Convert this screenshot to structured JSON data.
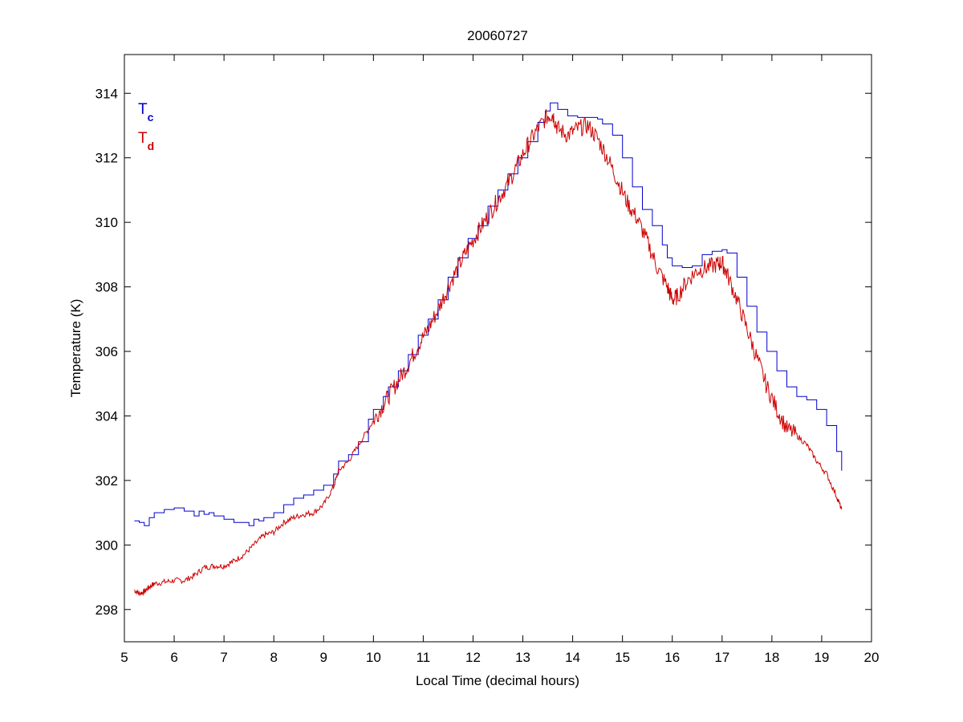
{
  "chart_data": {
    "type": "line",
    "title": "20060727",
    "xlabel": "Local Time (decimal hours)",
    "ylabel": "Temperature (K)",
    "xlim": [
      5,
      20
    ],
    "ylim": [
      297,
      315.2
    ],
    "xticks": [
      "5",
      "6",
      "7",
      "8",
      "9",
      "10",
      "11",
      "12",
      "13",
      "14",
      "15",
      "16",
      "17",
      "18",
      "19",
      "20"
    ],
    "yticks": [
      "298",
      "300",
      "302",
      "304",
      "306",
      "308",
      "310",
      "312",
      "314"
    ],
    "grid": false,
    "legend": {
      "placement": "top-left",
      "style": "inline-text"
    },
    "series": [
      {
        "name": "T",
        "subscript": "c",
        "color": "#0000cc",
        "style": "stepped",
        "x": [
          5.2,
          5.3,
          5.4,
          5.5,
          5.6,
          5.8,
          6.0,
          6.2,
          6.4,
          6.5,
          6.6,
          6.7,
          6.8,
          6.9,
          7.0,
          7.2,
          7.4,
          7.5,
          7.6,
          7.7,
          7.8,
          8.0,
          8.2,
          8.4,
          8.6,
          8.8,
          9.0,
          9.2,
          9.3,
          9.5,
          9.7,
          9.9,
          10.0,
          10.2,
          10.3,
          10.5,
          10.7,
          10.9,
          11.1,
          11.3,
          11.5,
          11.7,
          11.9,
          12.1,
          12.3,
          12.5,
          12.7,
          12.9,
          13.1,
          13.3,
          13.45,
          13.55,
          13.7,
          13.9,
          14.1,
          14.3,
          14.5,
          14.6,
          14.8,
          15.0,
          15.2,
          15.4,
          15.6,
          15.8,
          15.9,
          16.0,
          16.2,
          16.4,
          16.6,
          16.8,
          17.0,
          17.1,
          17.3,
          17.5,
          17.7,
          17.9,
          18.1,
          18.3,
          18.5,
          18.7,
          18.9,
          19.1,
          19.3,
          19.4
        ],
        "y": [
          300.75,
          300.7,
          300.6,
          300.85,
          301.0,
          301.1,
          301.15,
          301.05,
          300.9,
          301.05,
          300.95,
          301.0,
          300.9,
          300.9,
          300.8,
          300.7,
          300.7,
          300.6,
          300.8,
          300.75,
          300.85,
          301.0,
          301.25,
          301.45,
          301.55,
          301.7,
          301.85,
          302.2,
          302.6,
          302.8,
          303.2,
          303.9,
          304.2,
          304.6,
          304.9,
          305.4,
          305.9,
          306.5,
          307.0,
          307.6,
          308.3,
          308.9,
          309.5,
          309.9,
          310.5,
          311.0,
          311.5,
          312.0,
          312.5,
          313.1,
          313.45,
          313.7,
          313.5,
          313.3,
          313.25,
          313.25,
          313.2,
          313.05,
          312.7,
          312.0,
          311.1,
          310.4,
          309.9,
          309.3,
          308.9,
          308.65,
          308.6,
          308.65,
          309.0,
          309.1,
          309.15,
          309.05,
          308.3,
          307.4,
          306.6,
          306.0,
          305.4,
          304.9,
          304.6,
          304.5,
          304.2,
          303.7,
          302.9,
          302.3
        ]
      },
      {
        "name": "T",
        "subscript": "d",
        "color": "#cc0000",
        "style": "noisy",
        "x": [
          5.2,
          5.3,
          5.4,
          5.5,
          5.6,
          5.8,
          6.0,
          6.2,
          6.4,
          6.6,
          6.8,
          7.0,
          7.2,
          7.4,
          7.6,
          7.8,
          8.0,
          8.2,
          8.4,
          8.6,
          8.8,
          9.0,
          9.2,
          9.3,
          9.5,
          9.7,
          9.9,
          10.1,
          10.3,
          10.5,
          10.7,
          10.9,
          11.1,
          11.3,
          11.5,
          11.7,
          11.9,
          12.1,
          12.3,
          12.5,
          12.7,
          12.9,
          13.1,
          13.3,
          13.5,
          13.6,
          13.7,
          13.9,
          14.1,
          14.3,
          14.5,
          14.7,
          14.9,
          15.1,
          15.3,
          15.5,
          15.7,
          15.9,
          16.0,
          16.1,
          16.3,
          16.5,
          16.7,
          16.9,
          17.0,
          17.1,
          17.3,
          17.5,
          17.7,
          17.9,
          18.1,
          18.3,
          18.5,
          18.7,
          18.9,
          19.1,
          19.3,
          19.4
        ],
        "y": [
          298.6,
          298.5,
          298.55,
          298.7,
          298.8,
          298.85,
          298.9,
          298.9,
          299.05,
          299.3,
          299.35,
          299.35,
          299.5,
          299.7,
          300.0,
          300.3,
          300.4,
          300.7,
          300.85,
          300.95,
          301.0,
          301.25,
          301.8,
          302.3,
          302.6,
          303.1,
          303.6,
          304.1,
          304.6,
          305.1,
          305.6,
          306.2,
          306.7,
          307.3,
          308.0,
          308.6,
          309.2,
          309.7,
          310.2,
          310.7,
          311.2,
          311.8,
          312.4,
          312.9,
          313.3,
          313.35,
          312.9,
          312.7,
          312.9,
          313.0,
          312.6,
          312.0,
          311.3,
          310.6,
          310.1,
          309.4,
          308.6,
          308.0,
          307.6,
          307.7,
          308.2,
          308.5,
          308.6,
          308.7,
          308.75,
          308.4,
          307.6,
          306.7,
          305.8,
          304.9,
          304.2,
          303.6,
          303.4,
          303.1,
          302.6,
          302.2,
          301.5,
          301.1
        ]
      }
    ]
  }
}
